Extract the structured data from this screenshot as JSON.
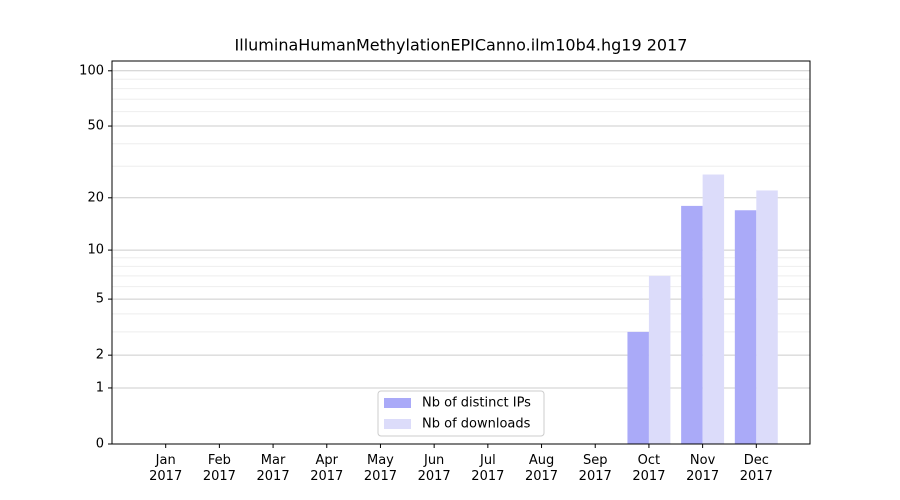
{
  "chart_data": {
    "type": "bar",
    "title": "IlluminaHumanMethylationEPICanno.ilm10b4.hg19 2017",
    "categories": [
      "Jan\n2017",
      "Feb\n2017",
      "Mar\n2017",
      "Apr\n2017",
      "May\n2017",
      "Jun\n2017",
      "Jul\n2017",
      "Aug\n2017",
      "Sep\n2017",
      "Oct\n2017",
      "Nov\n2017",
      "Dec\n2017"
    ],
    "series": [
      {
        "name": "Nb of distinct IPs",
        "color": "#aaaaf8",
        "values": [
          0,
          0,
          0,
          0,
          0,
          0,
          0,
          0,
          0,
          3,
          18,
          17
        ]
      },
      {
        "name": "Nb of downloads",
        "color": "#dcdcfa",
        "values": [
          0,
          0,
          0,
          0,
          0,
          0,
          0,
          0,
          0,
          7,
          27,
          22
        ]
      }
    ],
    "y_scale": "log1p",
    "ylim": [
      0,
      113
    ],
    "yticks": [
      0,
      1,
      2,
      5,
      10,
      20,
      50,
      100
    ],
    "y_minor_gridlines": [
      3,
      4,
      6,
      7,
      8,
      9,
      30,
      40,
      60,
      70,
      80,
      90
    ],
    "grid": true,
    "legend": "lower center"
  }
}
